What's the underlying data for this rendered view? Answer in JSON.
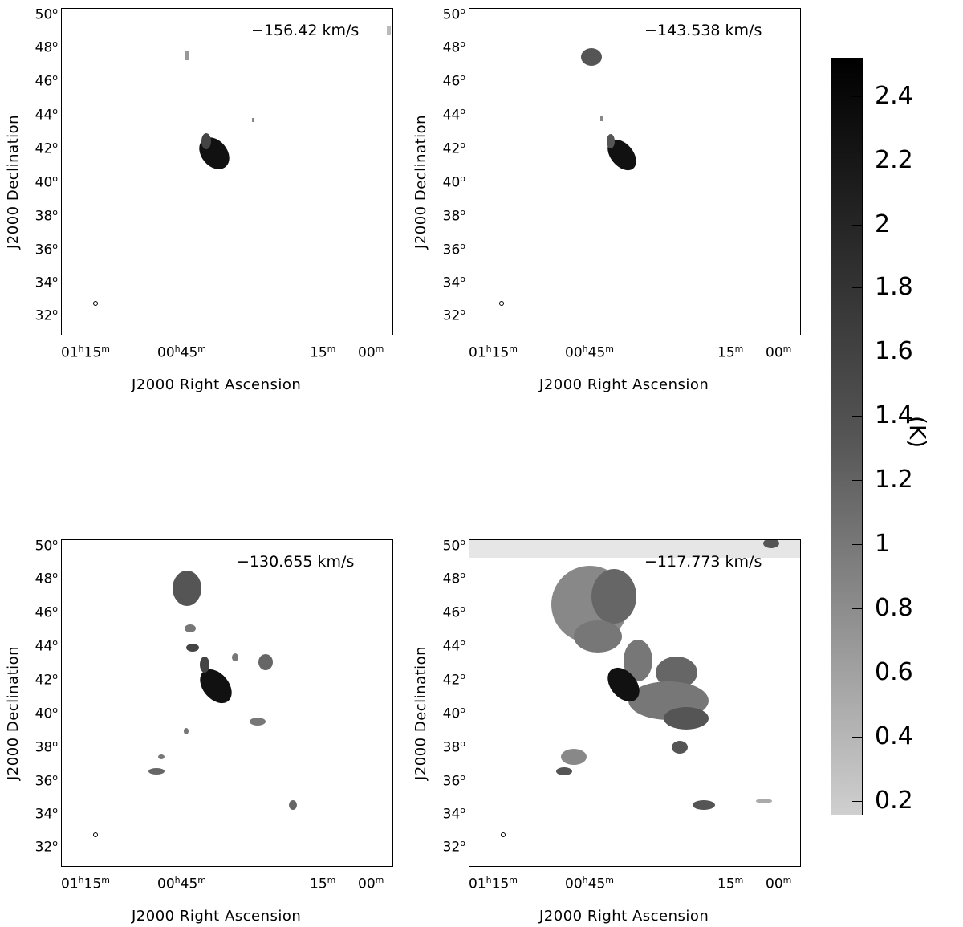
{
  "panels": [
    {
      "velocity": "−156.42 km/s"
    },
    {
      "velocity": "−143.538 km/s"
    },
    {
      "velocity": "−130.655 km/s"
    },
    {
      "velocity": "−117.773 km/s"
    }
  ],
  "axes": {
    "xlabel": "J2000 Right Ascension",
    "ylabel": "J2000 Declination",
    "yticks": [
      "50",
      "48",
      "46",
      "44",
      "42",
      "40",
      "38",
      "36",
      "34",
      "32"
    ],
    "deg_symbol": "o",
    "xticks": [
      {
        "main": "01",
        "h": "h",
        "min": "15",
        "m": "m"
      },
      {
        "main": "00",
        "h": "h",
        "min": "45",
        "m": "m"
      },
      {
        "main": "",
        "h": "",
        "min": "15",
        "m": "m"
      },
      {
        "main": "",
        "h": "",
        "min": "00",
        "m": "m"
      }
    ]
  },
  "colorbar": {
    "unit": "(K)",
    "ticks": [
      "2.4",
      "2.2",
      "2",
      "1.8",
      "1.6",
      "1.4",
      "1.2",
      "1",
      "0.8",
      "0.6",
      "0.4",
      "0.2"
    ]
  }
}
